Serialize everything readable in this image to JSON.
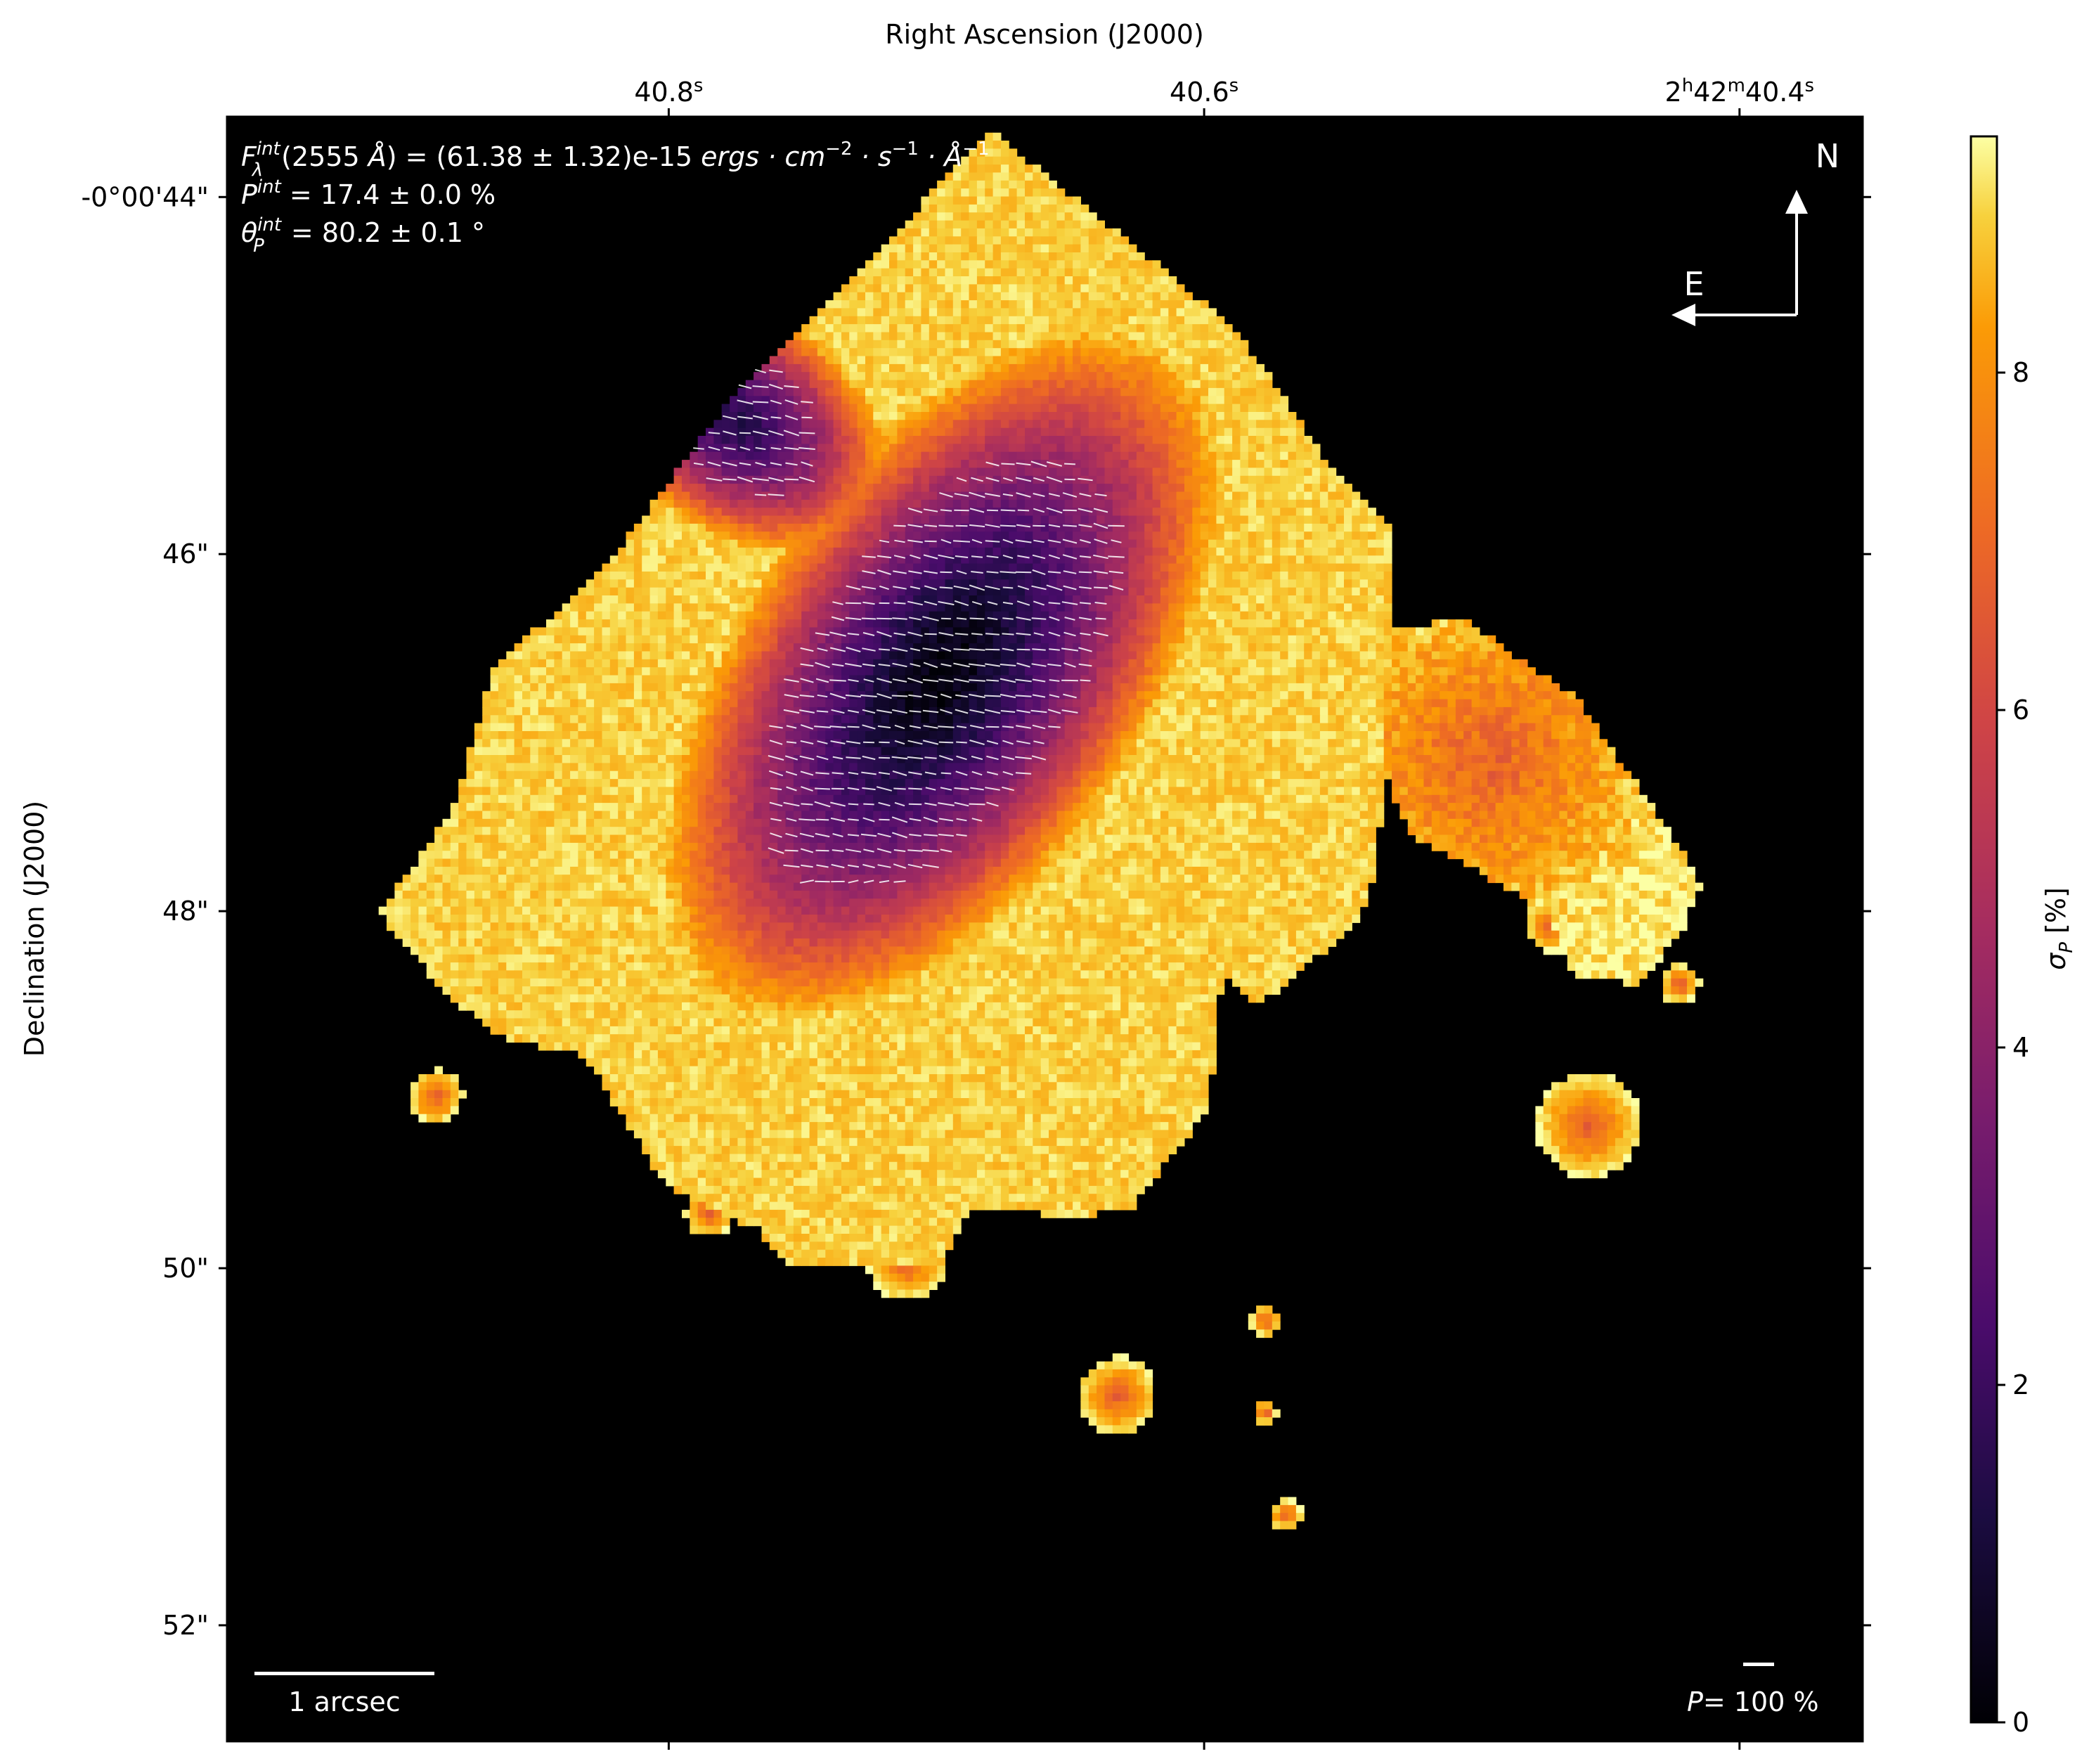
{
  "chart_data": {
    "type": "heatmap",
    "colormap": "inferno",
    "xlabel": "Right Ascension (J2000)",
    "ylabel": "Declination (J2000)",
    "x_ticks": [
      {
        "label_main": "40.8",
        "label_sup": "s",
        "value": 40.8
      },
      {
        "label_main": "40.6",
        "label_sup": "s",
        "value": 40.6
      },
      {
        "label_main": "2h42m40.4",
        "label_sup": "s",
        "value": 40.4,
        "parts": [
          "2",
          "h",
          "42",
          "m",
          "40.4",
          "s"
        ]
      }
    ],
    "x_range_seconds": [
      40.965,
      40.354
    ],
    "y_ticks": [
      {
        "label": "-0°00'44\"",
        "value": 44
      },
      {
        "label": "46\"",
        "value": 46
      },
      {
        "label": "48\"",
        "value": 48
      },
      {
        "label": "50\"",
        "value": 50
      },
      {
        "label": "52\"",
        "value": 52
      }
    ],
    "y_range_arcsec": [
      43.55,
      52.65
    ],
    "colorbar": {
      "label": "σP [%]",
      "label_main": "σ",
      "label_sub": "P",
      "label_tail": " [%]",
      "range": [
        0,
        9.4
      ],
      "ticks": [
        "0",
        "2",
        "4",
        "6",
        "8"
      ]
    },
    "annotations": {
      "flux_line": "F_λ^int(2555 Å) = (61.38 ± 1.32)e-15 ergs · cm^-2 · s^-1 · Å^-1",
      "flux_parts": {
        "F": "F",
        "sub": "λ",
        "sup": "int",
        "rest1": "(2555 ",
        "A": "Å",
        "rest2": ") = (61.38 ± 1.32)e-15 ",
        "units": "ergs · cm",
        "e1": "−2",
        "u2": " · s",
        "e2": "−1",
        "u3": " · Å",
        "e3": "−1"
      },
      "pol_line": "P^int = 17.4 ± 0.0 %",
      "pol_parts": {
        "P": "P",
        "sup": "int",
        "rest": " = 17.4 ± 0.0 %"
      },
      "angle_line": "θ_P^int = 80.2 ± 0.1 °",
      "angle_parts": {
        "theta": "θ",
        "sub": "P",
        "sup": "int",
        "rest": " = 80.2 ± 0.1 °"
      },
      "scalebar_label": "1 arcsec",
      "pol_scale_label": "= 100 %",
      "pol_scale_symbol": "P",
      "compass_north": "N",
      "compass_east": "E"
    },
    "description_points": [
      {
        "ra_s": 40.77,
        "dec_as": 46.3,
        "sigma_p": 3.5
      },
      {
        "ra_s": 40.69,
        "dec_as": 46.9,
        "sigma_p": 0.3
      },
      {
        "ra_s": 40.63,
        "dec_as": 47.0,
        "sigma_p": 0.6
      },
      {
        "ra_s": 40.67,
        "dec_as": 47.5,
        "sigma_p": 0.2
      },
      {
        "ra_s": 40.63,
        "dec_as": 48.9,
        "sigma_p": 2.5
      },
      {
        "ra_s": 40.73,
        "dec_as": 44.8,
        "sigma_p": 3.5
      },
      {
        "ra_s": 40.55,
        "dec_as": 46.0,
        "sigma_p": 6.5
      },
      {
        "ra_s": 40.49,
        "dec_as": 47.4,
        "sigma_p": 7.5
      },
      {
        "ra_s": 40.42,
        "dec_as": 48.3,
        "sigma_p": 6.5
      },
      {
        "ra_s": 40.71,
        "dec_as": 50.0,
        "sigma_p": 6.5
      },
      {
        "ra_s": 40.89,
        "dec_as": 49.0,
        "sigma_p": 6.0
      },
      {
        "ra_s": 40.63,
        "dec_as": 50.5,
        "sigma_p": 9.2
      }
    ]
  }
}
